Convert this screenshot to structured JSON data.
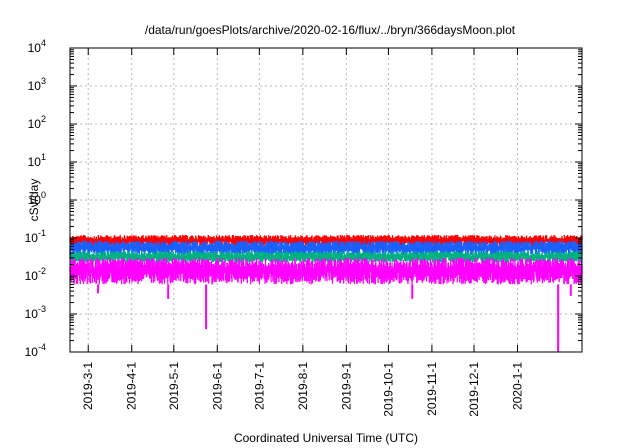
{
  "chart_data": {
    "type": "line",
    "title": "/data/run/goesPlots/archive/2020-02-16/flux/../bryn/366daysMoon.plot",
    "xlabel": "Coordinated Universal Time (UTC)",
    "ylabel": "cSv/day",
    "y_scale": "log",
    "ylim": [
      0.0001,
      10000
    ],
    "xlim": [
      "2019-02-16",
      "2020-02-16"
    ],
    "grid": true,
    "legend": "none",
    "y_ticks": [
      {
        "base": "10",
        "exp": "-4",
        "value": 0.0001
      },
      {
        "base": "10",
        "exp": "-3",
        "value": 0.001
      },
      {
        "base": "10",
        "exp": "-2",
        "value": 0.01
      },
      {
        "base": "10",
        "exp": "-1",
        "value": 0.1
      },
      {
        "base": "10",
        "exp": "0",
        "value": 1
      },
      {
        "base": "10",
        "exp": "1",
        "value": 10
      },
      {
        "base": "10",
        "exp": "2",
        "value": 100
      },
      {
        "base": "10",
        "exp": "3",
        "value": 1000
      },
      {
        "base": "10",
        "exp": "4",
        "value": 10000
      }
    ],
    "x_ticks": [
      {
        "label": "2019-3-1",
        "date": "2019-03-01"
      },
      {
        "label": "2019-4-1",
        "date": "2019-04-01"
      },
      {
        "label": "2019-5-1",
        "date": "2019-05-01"
      },
      {
        "label": "2019-6-1",
        "date": "2019-06-01"
      },
      {
        "label": "2019-7-1",
        "date": "2019-07-01"
      },
      {
        "label": "2019-8-1",
        "date": "2019-08-01"
      },
      {
        "label": "2019-9-1",
        "date": "2019-09-01"
      },
      {
        "label": "2019-10-1",
        "date": "2019-10-01"
      },
      {
        "label": "2019-11-1",
        "date": "2019-11-01"
      },
      {
        "label": "2019-12-1",
        "date": "2019-12-01"
      },
      {
        "label": "2020-1-1",
        "date": "2020-01-01"
      }
    ],
    "series": [
      {
        "color": "#ff0000",
        "typical_max": 0.12,
        "typical_min": 0.06
      },
      {
        "color": "#1a60ff",
        "typical_max": 0.085,
        "typical_min": 0.035
      },
      {
        "color": "#00b080",
        "typical_max": 0.045,
        "typical_min": 0.022
      },
      {
        "color": "#ff00ff",
        "typical_max": 0.03,
        "typical_min": 0.006,
        "dips": [
          {
            "date": "2019-03-08",
            "value": 0.0035
          },
          {
            "date": "2019-04-27",
            "value": 0.0025
          },
          {
            "date": "2019-05-24",
            "value": 0.0004
          },
          {
            "date": "2019-10-18",
            "value": 0.0025
          },
          {
            "date": "2020-01-30",
            "value": 0.0001
          },
          {
            "date": "2020-02-08",
            "value": 0.003
          }
        ]
      }
    ]
  }
}
